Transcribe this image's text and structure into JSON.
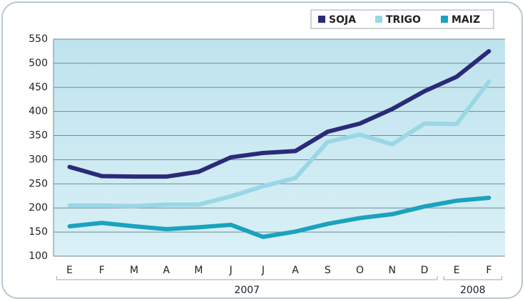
{
  "chart_data": {
    "type": "line",
    "categories": [
      "E",
      "F",
      "M",
      "A",
      "M",
      "J",
      "J",
      "A",
      "S",
      "O",
      "N",
      "D",
      "E",
      "F"
    ],
    "x_groups": [
      "2007",
      "2008"
    ],
    "series": [
      {
        "name": "SOJA",
        "color": "#2b2a78",
        "values": [
          285,
          266,
          265,
          265,
          275,
          305,
          314,
          318,
          358,
          375,
          405,
          442,
          472,
          525
        ]
      },
      {
        "name": "TRIGO",
        "color": "#9ad7e6",
        "values": [
          205,
          205,
          204,
          207,
          207,
          224,
          245,
          262,
          337,
          352,
          332,
          375,
          374,
          462
        ]
      },
      {
        "name": "MAIZ",
        "color": "#1ba2bf",
        "values": [
          162,
          169,
          162,
          156,
          160,
          165,
          140,
          151,
          167,
          179,
          187,
          203,
          215,
          221
        ]
      }
    ],
    "ylim": [
      100,
      550
    ],
    "yticks": [
      100,
      150,
      200,
      250,
      300,
      350,
      400,
      450,
      500,
      550
    ],
    "grid": true,
    "legend": "top-right"
  }
}
